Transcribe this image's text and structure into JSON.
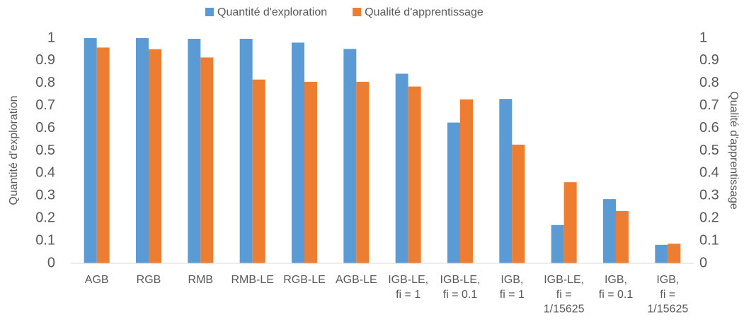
{
  "chart_data": {
    "type": "bar",
    "categories": [
      "AGB",
      "RGB",
      "RMB",
      "RMB-LE",
      "RGB-LE",
      "AGB-LE",
      "IGB-LE,\nfi = 1",
      "IGB-LE,\nfi = 0.1",
      "IGB,\nfi = 1",
      "IGB-LE,\nfi =\n1/15625",
      "IGB,\nfi = 0.1",
      "IGB,\nfi =\n1/15625"
    ],
    "series": [
      {
        "name": "Quantité d'exploration",
        "color": "#5b9bd5",
        "values": [
          1,
          1,
          0.997,
          0.997,
          0.98,
          0.952,
          0.842,
          0.625,
          0.73,
          0.17,
          0.285,
          0.082
        ]
      },
      {
        "name": "Qualité d'apprentissage",
        "color": "#ed7d31",
        "axis": "y2",
        "values": [
          0.958,
          0.951,
          0.914,
          0.816,
          0.806,
          0.806,
          0.785,
          0.728,
          0.527,
          0.36,
          0.232,
          0.087
        ]
      }
    ],
    "ylabel": "Quantité d'exploration",
    "y2label": "Qualité d'apprentissage",
    "ylim": [
      0,
      1
    ],
    "yticks": [
      0,
      0.1,
      0.2,
      0.3,
      0.4,
      0.5,
      0.6,
      0.7,
      0.8,
      0.9,
      1
    ],
    "y2lim": [
      0,
      1
    ],
    "y2ticks": [
      0,
      0.1,
      0.2,
      0.3,
      0.4,
      0.5,
      0.6,
      0.7,
      0.8,
      0.9,
      1
    ],
    "legend": "top",
    "grid": false
  }
}
